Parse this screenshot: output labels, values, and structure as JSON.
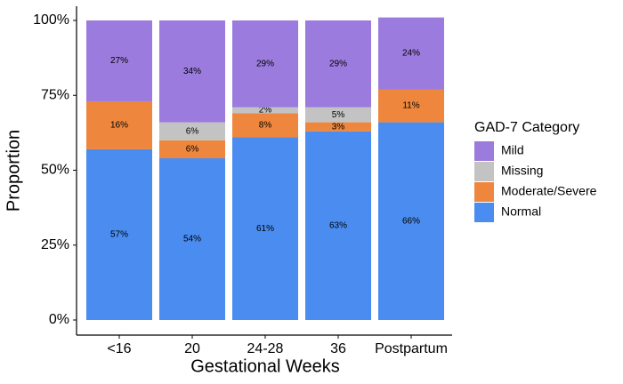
{
  "chart_data": {
    "type": "stacked_bar",
    "x_label": "Gestational Weeks",
    "y_label": "Proportion",
    "legend_title": "GAD-7 Category",
    "categories": [
      "<16",
      "20",
      "24-28",
      "36",
      "Postpartum"
    ],
    "series": [
      {
        "name": "Normal",
        "color": "#4a8cef",
        "values": [
          57,
          54,
          61,
          63,
          66
        ],
        "value_labels": [
          "57%",
          "54%",
          "61%",
          "63%",
          "66%"
        ]
      },
      {
        "name": "Moderate/Severe",
        "color": "#ee873d",
        "values": [
          16,
          6,
          8,
          3,
          11
        ],
        "value_labels": [
          "16%",
          "6%",
          "8%",
          "3%",
          "11%"
        ]
      },
      {
        "name": "Missing",
        "color": "#c3c3c3",
        "values": [
          null,
          6,
          2,
          5,
          null
        ],
        "value_labels": [
          null,
          "6%",
          "2%",
          "5%",
          null
        ]
      },
      {
        "name": "Mild",
        "color": "#9b7bdd",
        "values": [
          27,
          34,
          29,
          29,
          24
        ],
        "value_labels": [
          "27%",
          "34%",
          "29%",
          "29%",
          "24%"
        ]
      }
    ],
    "legend_order": [
      "Mild",
      "Missing",
      "Moderate/Severe",
      "Normal"
    ],
    "ylim": [
      0,
      100
    ],
    "yticks": [
      {
        "value": 0,
        "label": "0%"
      },
      {
        "value": 25,
        "label": "25%"
      },
      {
        "value": 50,
        "label": "50%"
      },
      {
        "value": 75,
        "label": "75%"
      },
      {
        "value": 100,
        "label": "100%"
      }
    ],
    "legend_position": "right"
  }
}
